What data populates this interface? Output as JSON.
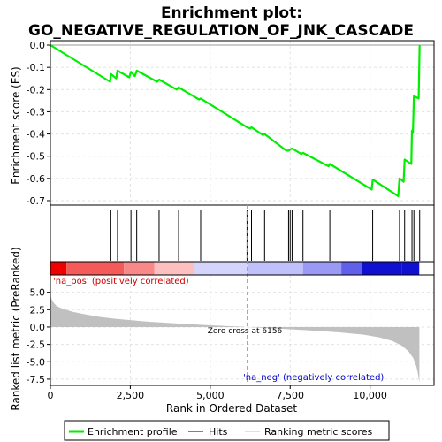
{
  "chart_data": {
    "type": "line",
    "title_line1": "Enrichment plot:",
    "title_line2": "GO_NEGATIVE_REGULATION_OF_JNK_CASCADE",
    "xlabel": "Rank in Ordered Dataset",
    "es_panel": {
      "ylabel": "Enrichment score (ES)",
      "ylim": [
        -0.72,
        0.02
      ],
      "yticks": [
        0.0,
        -0.1,
        -0.2,
        -0.3,
        -0.4,
        -0.5,
        -0.6,
        -0.7
      ],
      "ytick_labels": [
        "0.0",
        "-0.1",
        "-0.2",
        "-0.3",
        "-0.4",
        "-0.5",
        "-0.6",
        "-0.7"
      ],
      "line_color": "#00ee00",
      "series": [
        {
          "x": [
            0,
            1870,
            1890,
            2060,
            2100,
            2470,
            2520,
            2640,
            2700,
            3340,
            3400,
            3950,
            4010,
            4650,
            4700,
            6100,
            6150,
            6250,
            6290,
            6650,
            6700,
            7380,
            7450,
            7500,
            7560,
            7850,
            7900,
            8700,
            8740,
            10050,
            10080,
            10880,
            10920,
            11050,
            11080,
            11290,
            11310,
            11340,
            11370,
            11520,
            11550
          ],
          "y": [
            0.0,
            -0.165,
            -0.13,
            -0.15,
            -0.115,
            -0.145,
            -0.12,
            -0.14,
            -0.115,
            -0.165,
            -0.155,
            -0.2,
            -0.19,
            -0.245,
            -0.24,
            -0.365,
            -0.37,
            -0.375,
            -0.37,
            -0.405,
            -0.4,
            -0.475,
            -0.475,
            -0.47,
            -0.465,
            -0.49,
            -0.485,
            -0.545,
            -0.535,
            -0.65,
            -0.605,
            -0.68,
            -0.6,
            -0.615,
            -0.515,
            -0.535,
            -0.385,
            -0.395,
            -0.23,
            -0.24,
            0.0
          ]
        }
      ]
    },
    "hits": [
      1890,
      2100,
      2520,
      2700,
      3400,
      4010,
      4700,
      6150,
      6290,
      6700,
      7450,
      7500,
      7560,
      7900,
      8740,
      10080,
      10920,
      11080,
      11310,
      11370,
      11550
    ],
    "heatmap": {
      "colors": [
        "#ee0000",
        "#f45a5a",
        "#f98989",
        "#fcc0c0",
        "#d4d4fc",
        "#c0c0fa",
        "#9a9af4",
        "#6060ea",
        "#1010d0"
      ],
      "breaks": [
        0,
        500,
        2300,
        3250,
        4500,
        6156,
        7900,
        9100,
        9750,
        11000,
        11540
      ]
    },
    "metric_panel": {
      "ylabel": "Ranked list metric (PreRanked)",
      "ylim": [
        -8.4,
        7.5
      ],
      "yticks": [
        5.0,
        2.5,
        0.0,
        -2.5,
        -5.0,
        -7.5
      ],
      "ytick_labels": [
        "5.0",
        "2.5",
        "0.0",
        "-2.5",
        "-5.0",
        "-7.5"
      ],
      "fill_color": "#c0c0c0",
      "zero_cross_label": "Zero cross at 6156",
      "zero_cross": 6156,
      "pos_label": "'na_pos' (positively correlated)",
      "neg_label": "'na_neg' (negatively correlated)",
      "pos_label_color": "#cc0000",
      "neg_label_color": "#0000cc",
      "series": {
        "x": [
          0,
          40,
          100,
          200,
          400,
          700,
          1000,
          1500,
          2000,
          3000,
          4000,
          5000,
          6000,
          6156,
          7000,
          8000,
          9000,
          9800,
          10300,
          10700,
          11000,
          11200,
          11350,
          11450,
          11500,
          11540
        ],
        "y": [
          4.6,
          4.0,
          3.5,
          3.0,
          2.6,
          2.2,
          1.9,
          1.5,
          1.2,
          0.8,
          0.5,
          0.25,
          0.05,
          0.0,
          -0.2,
          -0.45,
          -0.75,
          -1.1,
          -1.5,
          -2.0,
          -2.7,
          -3.5,
          -4.5,
          -5.7,
          -6.8,
          -8.0
        ]
      }
    },
    "xaxis": {
      "xlim": [
        0,
        12000
      ],
      "xticks": [
        0,
        2500,
        5000,
        7500,
        10000
      ],
      "xtick_labels": [
        "0",
        "2,500",
        "5,000",
        "7,500",
        "10,000"
      ]
    },
    "legend": {
      "placement": "bottom",
      "items": [
        {
          "label": "Enrichment profile",
          "color": "#00ee00",
          "kind": "thick-line"
        },
        {
          "label": "Hits",
          "color": "#000000",
          "kind": "thin-line"
        },
        {
          "label": "Ranking metric scores",
          "color": "#c0c0c0",
          "kind": "thin-line"
        }
      ]
    }
  }
}
